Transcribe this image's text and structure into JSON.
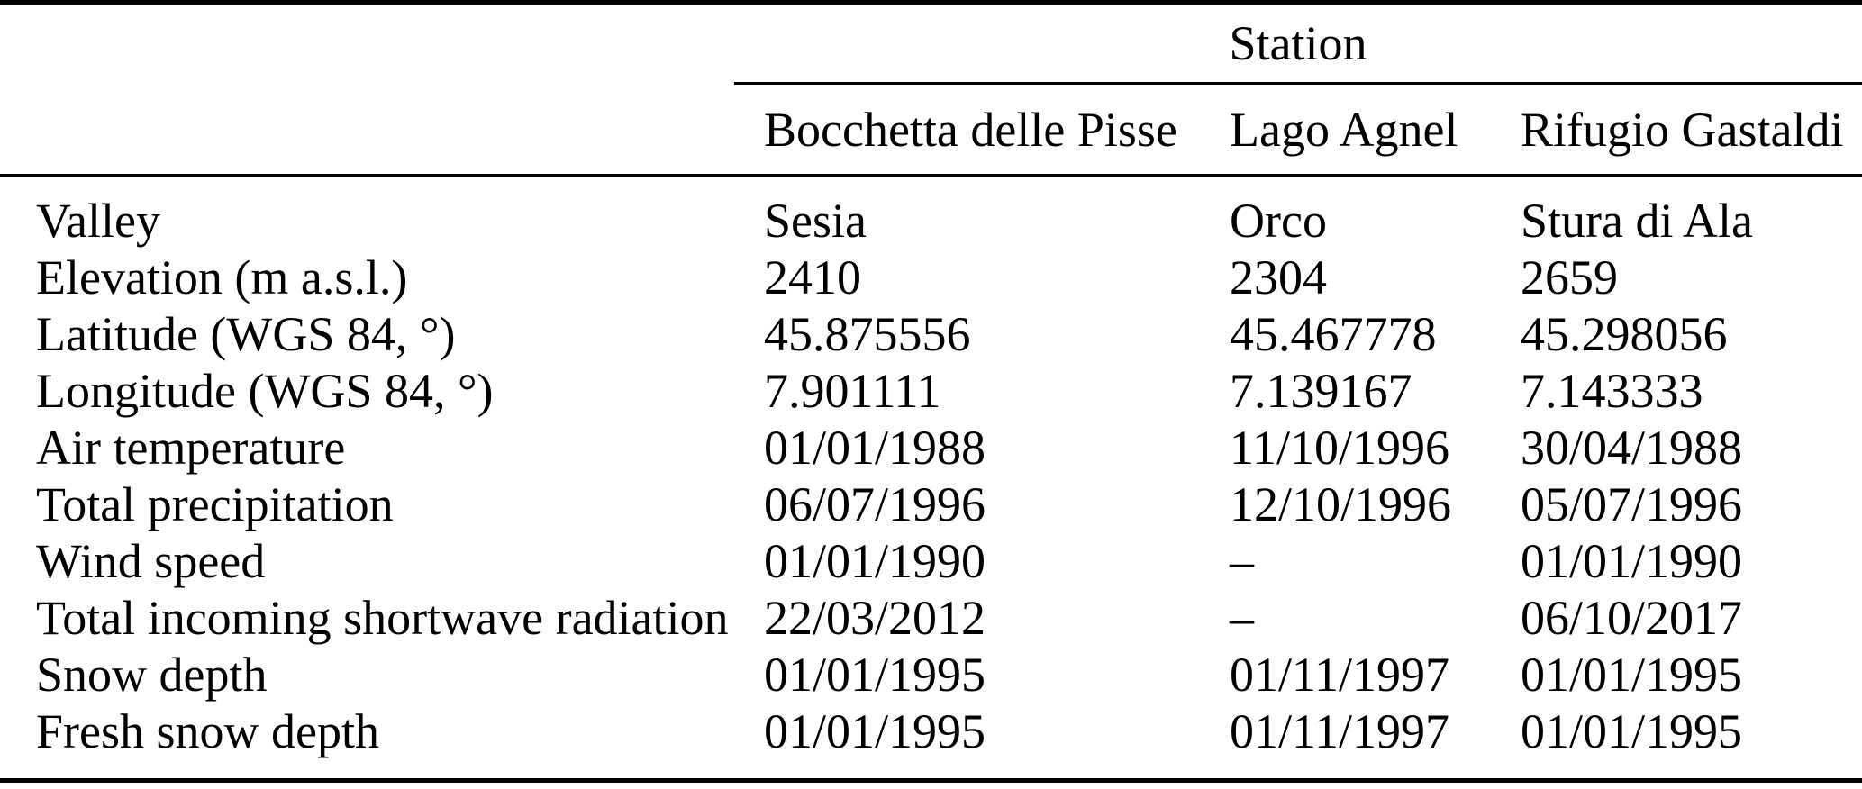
{
  "colors": {
    "text": "#000000",
    "background": "#ffffff",
    "rule": "#000000"
  },
  "table": {
    "group_header": "Station",
    "row_label_header": "",
    "columns": [
      "Bocchetta delle Pisse",
      "Lago Agnel",
      "Rifugio Gastaldi"
    ],
    "rows": [
      {
        "label": "Valley",
        "values": [
          "Sesia",
          "Orco",
          "Stura di Ala"
        ]
      },
      {
        "label": "Elevation (m a.s.l.)",
        "values": [
          "2410",
          "2304",
          "2659"
        ]
      },
      {
        "label": "Latitude (WGS 84, °)",
        "values": [
          "45.875556",
          "45.467778",
          "45.298056"
        ]
      },
      {
        "label": "Longitude (WGS 84, °)",
        "values": [
          "7.901111",
          "7.139167",
          "7.143333"
        ]
      },
      {
        "label": "Air temperature",
        "values": [
          "01/01/1988",
          "11/10/1996",
          "30/04/1988"
        ]
      },
      {
        "label": "Total precipitation",
        "values": [
          "06/07/1996",
          "12/10/1996",
          "05/07/1996"
        ]
      },
      {
        "label": "Wind speed",
        "values": [
          "01/01/1990",
          "–",
          "01/01/1990"
        ]
      },
      {
        "label": "Total incoming shortwave radiation",
        "values": [
          "22/03/2012",
          "–",
          "06/10/2017"
        ]
      },
      {
        "label": "Snow depth",
        "values": [
          "01/01/1995",
          "01/11/1997",
          "01/01/1995"
        ]
      },
      {
        "label": "Fresh snow depth",
        "values": [
          "01/01/1995",
          "01/11/1997",
          "01/01/1995"
        ]
      }
    ]
  }
}
